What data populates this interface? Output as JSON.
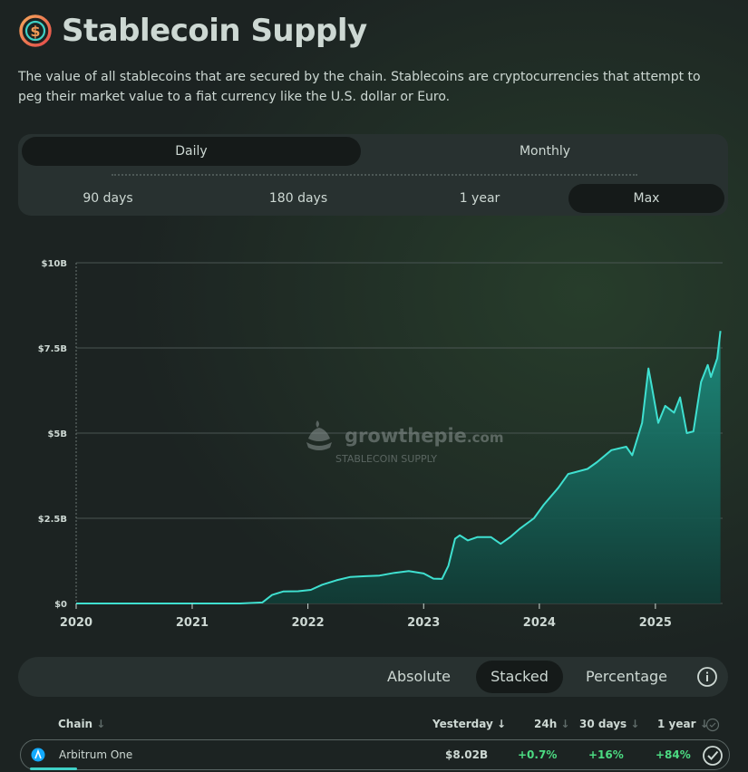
{
  "header": {
    "title": "Stablecoin Supply",
    "logo_icon": "dollar-coin-icon"
  },
  "description": "The value of all stablecoins that are secured by the chain. Stablecoins are cryptocurrencies that attempt to peg their market value to a fiat currency like the U.S. dollar or Euro.",
  "controls": {
    "interval_tabs": [
      "Daily",
      "Monthly"
    ],
    "active_interval": "Daily",
    "time_ranges": [
      "90 days",
      "180 days",
      "1 year",
      "Max"
    ],
    "active_range": "Max"
  },
  "watermark": {
    "brand": "growthepie",
    "brand_suffix": ".com",
    "caption": "STABLECOIN SUPPLY"
  },
  "chart_data": {
    "type": "area",
    "title": "",
    "xlabel": "",
    "ylabel": "",
    "x_ticks": [
      "2020",
      "2021",
      "2022",
      "2023",
      "2024",
      "2025"
    ],
    "y_ticks": [
      "$0",
      "$2.5B",
      "$5B",
      "$7.5B",
      "$10B"
    ],
    "ylim": [
      0,
      10
    ],
    "grid": true,
    "colors": {
      "line": "#3fe0d0",
      "fill_top": "#1d8f80",
      "fill_bottom": "#103c36"
    },
    "series": [
      {
        "values_unit": "billions USD",
        "points": [
          [
            "2020-01-01",
            0.0
          ],
          [
            "2021-06-01",
            0.0
          ],
          [
            "2021-08-10",
            0.03
          ],
          [
            "2021-09-10",
            0.25
          ],
          [
            "2021-10-15",
            0.35
          ],
          [
            "2021-12-01",
            0.36
          ],
          [
            "2022-01-10",
            0.4
          ],
          [
            "2022-02-15",
            0.55
          ],
          [
            "2022-04-01",
            0.68
          ],
          [
            "2022-05-15",
            0.78
          ],
          [
            "2022-07-01",
            0.8
          ],
          [
            "2022-08-15",
            0.82
          ],
          [
            "2022-10-01",
            0.9
          ],
          [
            "2022-11-15",
            0.95
          ],
          [
            "2023-01-01",
            0.88
          ],
          [
            "2023-02-01",
            0.73
          ],
          [
            "2023-02-28",
            0.72
          ],
          [
            "2023-03-20",
            1.1
          ],
          [
            "2023-04-10",
            1.9
          ],
          [
            "2023-04-25",
            2.0
          ],
          [
            "2023-05-20",
            1.85
          ],
          [
            "2023-06-20",
            1.95
          ],
          [
            "2023-08-01",
            1.95
          ],
          [
            "2023-09-01",
            1.75
          ],
          [
            "2023-10-01",
            1.95
          ],
          [
            "2023-11-01",
            2.2
          ],
          [
            "2023-12-15",
            2.5
          ],
          [
            "2024-01-15",
            2.9
          ],
          [
            "2024-03-01",
            3.4
          ],
          [
            "2024-04-01",
            3.8
          ],
          [
            "2024-06-01",
            3.95
          ],
          [
            "2024-07-01",
            4.15
          ],
          [
            "2024-08-15",
            4.5
          ],
          [
            "2024-10-01",
            4.6
          ],
          [
            "2024-10-20",
            4.35
          ],
          [
            "2024-11-20",
            5.3
          ],
          [
            "2024-12-10",
            6.9
          ],
          [
            "2024-12-20",
            6.4
          ],
          [
            "2025-01-10",
            5.3
          ],
          [
            "2025-02-01",
            5.8
          ],
          [
            "2025-03-01",
            5.6
          ],
          [
            "2025-03-20",
            6.05
          ],
          [
            "2025-04-10",
            5.0
          ],
          [
            "2025-05-01",
            5.05
          ],
          [
            "2025-05-25",
            6.5
          ],
          [
            "2025-06-15",
            7.0
          ],
          [
            "2025-06-25",
            6.65
          ],
          [
            "2025-07-15",
            7.2
          ],
          [
            "2025-07-25",
            8.0
          ]
        ]
      }
    ]
  },
  "view_toggle": {
    "options": [
      "Absolute",
      "Stacked",
      "Percentage"
    ],
    "active": "Stacked",
    "info_icon": "info-icon"
  },
  "table": {
    "headers": {
      "chain": "Chain",
      "yesterday": "Yesterday",
      "h24": "24h",
      "d30": "30 days",
      "y1": "1 year"
    },
    "rows": [
      {
        "icon": "arbitrum-logo-icon",
        "chain": "Arbitrum One",
        "yesterday": "$8.02B",
        "h24": "+0.7%",
        "d30": "+16%",
        "y1": "+84%"
      }
    ]
  }
}
